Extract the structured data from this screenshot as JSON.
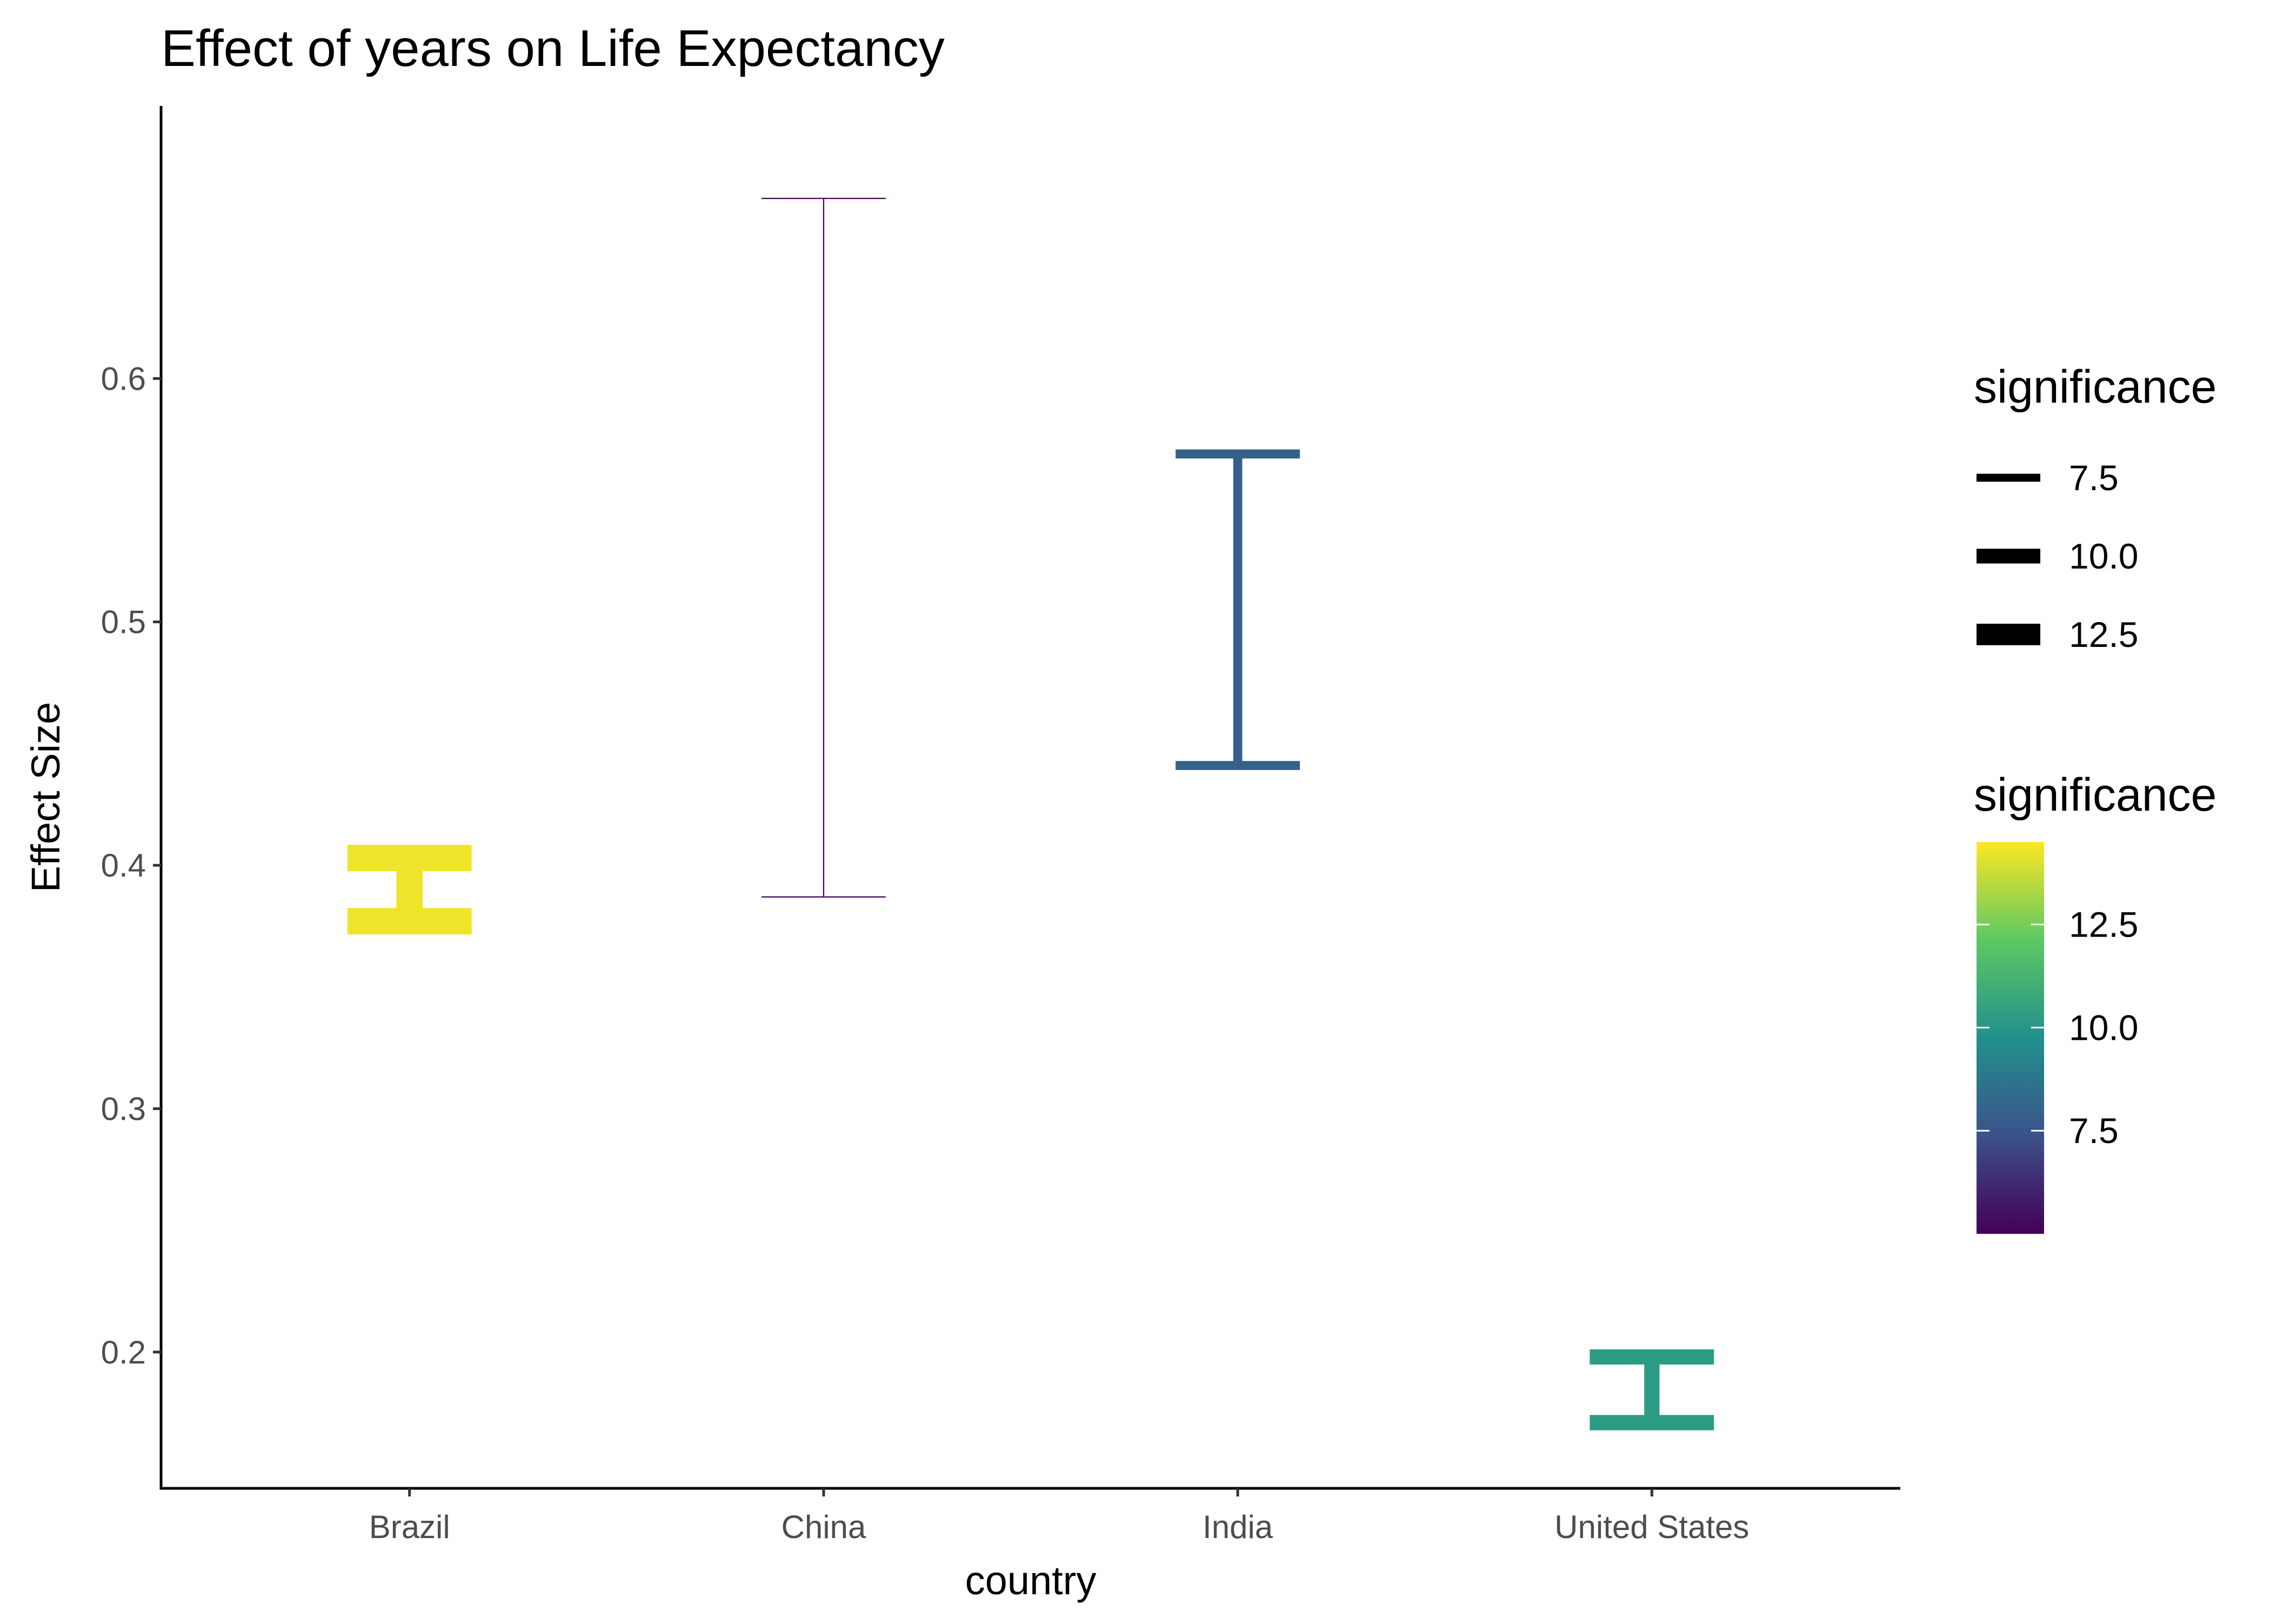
{
  "chart_data": {
    "type": "errorbar",
    "title": "Effect of years on Life Expectancy",
    "xlabel": "country",
    "ylabel": "Effect Size",
    "categories": [
      "Brazil",
      "China",
      "India",
      "United States"
    ],
    "series": [
      {
        "points": [
          {
            "x": "Brazil",
            "ymin": 0.377,
            "ymax": 0.403,
            "significance": 14.3
          },
          {
            "x": "China",
            "ymin": 0.387,
            "ymax": 0.674,
            "significance": 5.0
          },
          {
            "x": "India",
            "ymin": 0.441,
            "ymax": 0.569,
            "significance": 7.9
          },
          {
            "x": "United States",
            "ymin": 0.171,
            "ymax": 0.198,
            "significance": 10.2
          }
        ]
      }
    ],
    "ylim": [
      0.144,
      0.712
    ],
    "yticks": [
      0.2,
      0.3,
      0.4,
      0.5,
      0.6
    ],
    "ytick_labels": [
      "0.2",
      "0.3",
      "0.4",
      "0.5",
      "0.6"
    ],
    "grid": false,
    "legend_position": "right",
    "legends": {
      "size": {
        "title": "significance",
        "labels": [
          "7.5",
          "10.0",
          "12.5"
        ],
        "values": [
          7.5,
          10.0,
          12.5
        ]
      },
      "color": {
        "title": "significance",
        "labels": [
          "12.5",
          "10.0",
          "7.5"
        ],
        "values": [
          12.5,
          10.0,
          7.5
        ],
        "range": [
          5.0,
          14.5
        ],
        "palette": "viridis",
        "colors": [
          "#440154",
          "#3B528B",
          "#21908C",
          "#5DC863",
          "#FDE725"
        ]
      }
    }
  }
}
